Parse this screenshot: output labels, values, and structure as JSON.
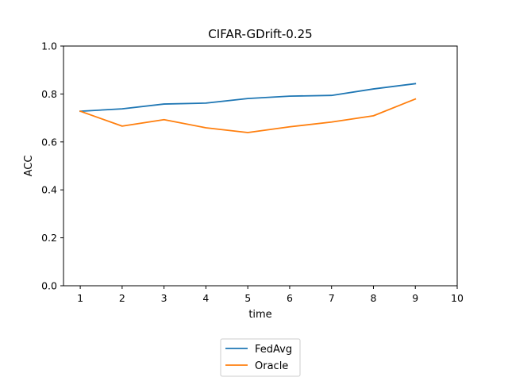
{
  "chart_data": {
    "type": "line",
    "title": "CIFAR-GDrift-0.25",
    "xlabel": "time",
    "ylabel": "ACC",
    "xlim": [
      0.6,
      10
    ],
    "ylim": [
      0,
      1
    ],
    "x_ticks": [
      "1",
      "2",
      "3",
      "4",
      "5",
      "6",
      "7",
      "8",
      "9",
      "10"
    ],
    "y_ticks": [
      "0.0",
      "0.2",
      "0.4",
      "0.6",
      "0.8",
      "1.0"
    ],
    "grid": false,
    "legend_position": "bottom-center",
    "x": [
      1,
      2,
      3,
      4,
      5,
      6,
      7,
      8,
      9
    ],
    "series": [
      {
        "name": "FedAvg",
        "color": "#1f77b4",
        "values": [
          0.728,
          0.738,
          0.758,
          0.762,
          0.781,
          0.791,
          0.794,
          0.821,
          0.843
        ]
      },
      {
        "name": "Oracle",
        "color": "#ff7f0e",
        "values": [
          0.728,
          0.666,
          0.693,
          0.659,
          0.639,
          0.663,
          0.683,
          0.709,
          0.779
        ]
      }
    ]
  }
}
